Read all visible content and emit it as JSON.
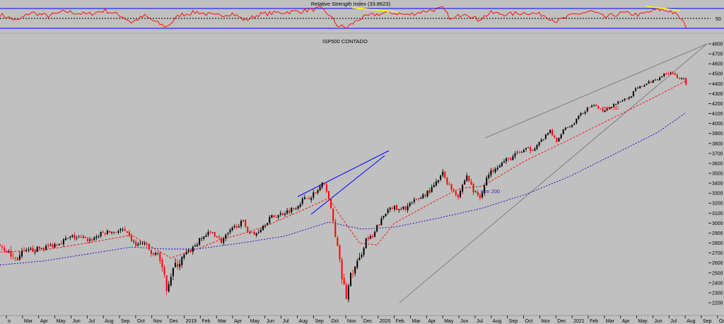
{
  "colors": {
    "background": "#c0c0c0",
    "rsi_line": "#ff0000",
    "rsi_band": "#0000ff",
    "candle_up": "#000000",
    "candle_down": "#ff0000",
    "mm50": "#ff0000",
    "mm200": "#0000cc",
    "trendline_blue": "#0000ff",
    "trendline_gray": "#6e6e6e",
    "divergence": "#ffff00"
  },
  "rsi_panel": {
    "title": "Relative Strength Index (33.8623)",
    "level_label": "50"
  },
  "price_panel": {
    "title": "ISP500 CONTADO",
    "mm50_label": "mm 50",
    "mm200_label": "mm 200"
  },
  "chart_data": [
    {
      "type": "line",
      "title": "Relative Strength Index (33.8623)",
      "last_value": 33.8623,
      "ylim": [
        25,
        80
      ],
      "levels": [
        30,
        50,
        70
      ],
      "level_labels": [
        "50"
      ]
    },
    {
      "type": "candlestick",
      "title": "ISP500 CONTADO",
      "ylim": [
        2130,
        4800
      ],
      "y_ticks": [
        2200,
        2300,
        2400,
        2500,
        2600,
        2700,
        2800,
        2900,
        3000,
        3100,
        3200,
        3300,
        3400,
        3500,
        3600,
        3700,
        3800,
        3900,
        4000,
        4100,
        4200,
        4300,
        4400,
        4500,
        4600,
        4700,
        4800
      ],
      "x_ticks": [
        "o",
        "Mar",
        "Apr",
        "May",
        "Jun",
        "Jul",
        "Aug",
        "Sep",
        "Oct",
        "Nov",
        "Dec",
        "2019",
        "Feb",
        "Mar",
        "Apr",
        "May",
        "Jun",
        "Jul",
        "Aug",
        "Sep",
        "Oct",
        "Nov",
        "Dec",
        "2020",
        "Feb",
        "Mar",
        "Apr",
        "May",
        "Jun",
        "Jul",
        "Aug",
        "Sep",
        "Oct",
        "Nov",
        "Dec",
        "2021",
        "Feb",
        "Mar",
        "Apr",
        "May",
        "Jun",
        "Jul",
        "Aug",
        "Sep",
        "Oct"
      ],
      "price_path": [
        [
          0,
          2780
        ],
        [
          7,
          2640
        ],
        [
          13,
          2720
        ],
        [
          23,
          2770
        ],
        [
          33,
          2860
        ],
        [
          41,
          2830
        ],
        [
          47,
          2900
        ],
        [
          56,
          2930
        ],
        [
          62,
          2780
        ],
        [
          66,
          2800
        ],
        [
          70,
          2660
        ],
        [
          72,
          2720
        ],
        [
          74,
          2520
        ],
        [
          76,
          2360
        ],
        [
          79,
          2540
        ],
        [
          84,
          2660
        ],
        [
          90,
          2800
        ],
        [
          93,
          2870
        ],
        [
          97,
          2910
        ],
        [
          101,
          2820
        ],
        [
          104,
          2890
        ],
        [
          108,
          2980
        ],
        [
          111,
          3010
        ],
        [
          113,
          2930
        ],
        [
          116,
          2880
        ],
        [
          119,
          2950
        ],
        [
          123,
          3050
        ],
        [
          127,
          3080
        ],
        [
          134,
          3150
        ],
        [
          138,
          3230
        ],
        [
          144,
          3300
        ],
        [
          147,
          3390
        ],
        [
          149,
          3340
        ],
        [
          150,
          3250
        ],
        [
          152,
          3010
        ],
        [
          154,
          2750
        ],
        [
          156,
          2450
        ],
        [
          158,
          2260
        ],
        [
          160,
          2470
        ],
        [
          164,
          2630
        ],
        [
          167,
          2840
        ],
        [
          170,
          2850
        ],
        [
          172,
          2960
        ],
        [
          176,
          3100
        ],
        [
          178,
          3180
        ],
        [
          182,
          3120
        ],
        [
          188,
          3200
        ],
        [
          193,
          3280
        ],
        [
          197,
          3340
        ],
        [
          200,
          3430
        ],
        [
          202,
          3500
        ],
        [
          205,
          3370
        ],
        [
          209,
          3280
        ],
        [
          213,
          3480
        ],
        [
          216,
          3320
        ],
        [
          219,
          3260
        ],
        [
          222,
          3450
        ],
        [
          226,
          3570
        ],
        [
          232,
          3640
        ],
        [
          238,
          3720
        ],
        [
          243,
          3750
        ],
        [
          248,
          3850
        ],
        [
          251,
          3930
        ],
        [
          254,
          3810
        ],
        [
          257,
          3950
        ],
        [
          261,
          3980
        ],
        [
          264,
          4070
        ],
        [
          268,
          4150
        ],
        [
          272,
          4180
        ],
        [
          275,
          4130
        ],
        [
          279,
          4180
        ],
        [
          283,
          4230
        ],
        [
          287,
          4260
        ],
        [
          290,
          4340
        ],
        [
          294,
          4390
        ],
        [
          297,
          4420
        ],
        [
          302,
          4480
        ],
        [
          306,
          4520
        ],
        [
          309,
          4470
        ],
        [
          312,
          4460
        ],
        [
          313,
          4380
        ]
      ],
      "mm50_path": [
        [
          0,
          2710
        ],
        [
          20,
          2730
        ],
        [
          40,
          2800
        ],
        [
          60,
          2880
        ],
        [
          70,
          2750
        ],
        [
          78,
          2650
        ],
        [
          90,
          2740
        ],
        [
          100,
          2830
        ],
        [
          110,
          2890
        ],
        [
          120,
          2960
        ],
        [
          135,
          3100
        ],
        [
          150,
          3250
        ],
        [
          156,
          3050
        ],
        [
          164,
          2800
        ],
        [
          172,
          2780
        ],
        [
          180,
          3000
        ],
        [
          200,
          3240
        ],
        [
          210,
          3350
        ],
        [
          220,
          3370
        ],
        [
          240,
          3630
        ],
        [
          260,
          3840
        ],
        [
          280,
          4060
        ],
        [
          300,
          4280
        ],
        [
          313,
          4430
        ]
      ],
      "mm200_path": [
        [
          0,
          2580
        ],
        [
          20,
          2620
        ],
        [
          40,
          2690
        ],
        [
          60,
          2760
        ],
        [
          75,
          2740
        ],
        [
          90,
          2740
        ],
        [
          110,
          2800
        ],
        [
          130,
          2870
        ],
        [
          150,
          3010
        ],
        [
          165,
          2940
        ],
        [
          180,
          2960
        ],
        [
          200,
          3050
        ],
        [
          220,
          3150
        ],
        [
          240,
          3290
        ],
        [
          260,
          3470
        ],
        [
          280,
          3690
        ],
        [
          300,
          3910
        ],
        [
          313,
          4110
        ]
      ],
      "rsi_path": [
        [
          0,
          58
        ],
        [
          8,
          45
        ],
        [
          14,
          62
        ],
        [
          22,
          55
        ],
        [
          30,
          64
        ],
        [
          40,
          58
        ],
        [
          48,
          66
        ],
        [
          56,
          54
        ],
        [
          60,
          42
        ],
        [
          66,
          55
        ],
        [
          72,
          40
        ],
        [
          76,
          33
        ],
        [
          82,
          57
        ],
        [
          90,
          63
        ],
        [
          98,
          55
        ],
        [
          106,
          60
        ],
        [
          112,
          46
        ],
        [
          118,
          58
        ],
        [
          128,
          62
        ],
        [
          138,
          65
        ],
        [
          146,
          70
        ],
        [
          150,
          58
        ],
        [
          154,
          36
        ],
        [
          158,
          31
        ],
        [
          164,
          49
        ],
        [
          170,
          57
        ],
        [
          178,
          62
        ],
        [
          186,
          57
        ],
        [
          194,
          65
        ],
        [
          202,
          70
        ],
        [
          206,
          47
        ],
        [
          212,
          62
        ],
        [
          218,
          47
        ],
        [
          224,
          61
        ],
        [
          232,
          58
        ],
        [
          240,
          62
        ],
        [
          248,
          57
        ],
        [
          254,
          44
        ],
        [
          262,
          58
        ],
        [
          270,
          64
        ],
        [
          276,
          52
        ],
        [
          284,
          61
        ],
        [
          292,
          57
        ],
        [
          300,
          68
        ],
        [
          306,
          65
        ],
        [
          310,
          52
        ],
        [
          313,
          34
        ]
      ]
    }
  ]
}
